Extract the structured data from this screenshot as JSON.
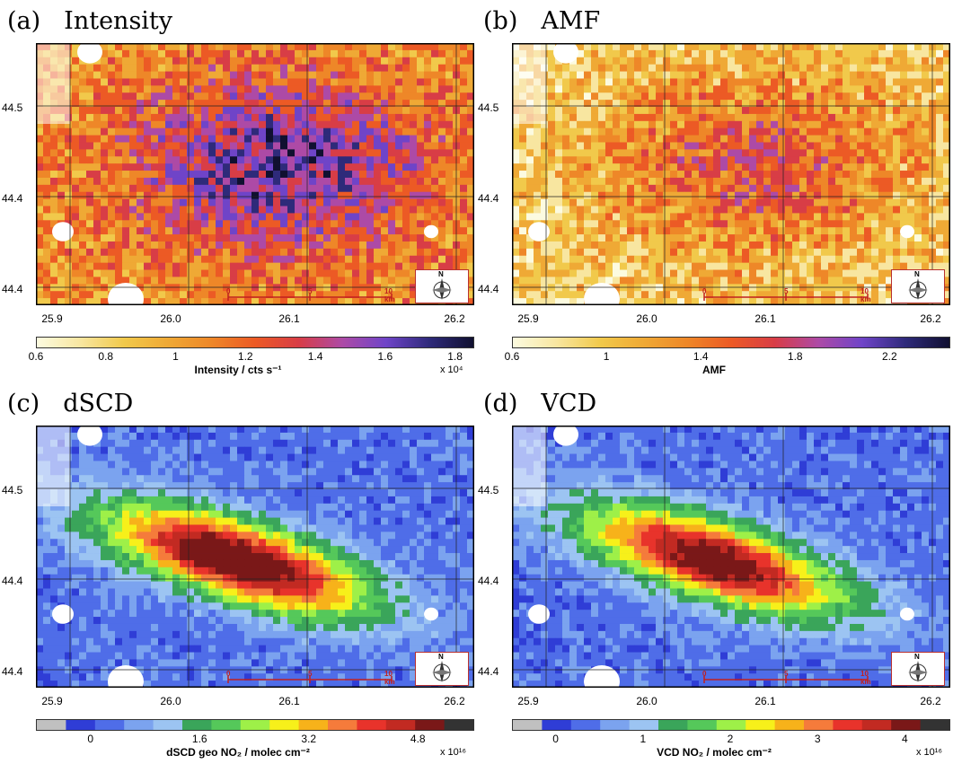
{
  "panels": [
    {
      "letter": "(a)",
      "title": "Intensity",
      "colorbar_label": "Intensity / cts s⁻¹",
      "colorbar_exponent": "x 10⁴",
      "colorbar_ticks": [
        "0.6",
        "0.8",
        "1",
        "1.2",
        "1.4",
        "1.6",
        "1.8"
      ],
      "colormap": [
        "#fcfbe0",
        "#f8e6a0",
        "#f1c94b",
        "#efa935",
        "#ee8728",
        "#ec5a25",
        "#d83d46",
        "#ad4aa6",
        "#6f44c8",
        "#2e2a7a",
        "#101030"
      ]
    },
    {
      "letter": "(b)",
      "title": "AMF",
      "colorbar_label": "AMF",
      "colorbar_exponent": "",
      "colorbar_ticks": [
        "0.6",
        "1",
        "1.4",
        "1.8",
        "2.2"
      ],
      "colormap": [
        "#fcfbe0",
        "#f8e6a0",
        "#f1c94b",
        "#efa935",
        "#ee8728",
        "#ec5a25",
        "#d83d46",
        "#ad4aa6",
        "#6f44c8",
        "#2e2a7a",
        "#101030"
      ]
    },
    {
      "letter": "(c)",
      "title": "dSCD",
      "colorbar_label": "dSCD geo NO₂ / molec cm⁻²",
      "colorbar_exponent": "x 10¹⁶",
      "colorbar_ticks": [
        "0",
        "1.6",
        "3.2",
        "4.8"
      ],
      "colormap": [
        "#c0c0c0",
        "#2f3dd6",
        "#4f6de8",
        "#7ba3ef",
        "#9cc4f2",
        "#3aa55a",
        "#55c85a",
        "#9ef048",
        "#f7f01a",
        "#f7b21a",
        "#f57b3b",
        "#e8332b",
        "#c22a22",
        "#7a1818",
        "#333333"
      ]
    },
    {
      "letter": "(d)",
      "title": "VCD",
      "colorbar_label": "VCD NO₂ / molec cm⁻²",
      "colorbar_exponent": "x 10¹⁶",
      "colorbar_ticks": [
        "0",
        "1",
        "2",
        "3",
        "4"
      ],
      "colormap": [
        "#c0c0c0",
        "#2f3dd6",
        "#4f6de8",
        "#7ba3ef",
        "#9cc4f2",
        "#3aa55a",
        "#55c85a",
        "#9ef048",
        "#f7f01a",
        "#f7b21a",
        "#f57b3b",
        "#e8332b",
        "#c22a22",
        "#7a1818",
        "#333333"
      ]
    }
  ],
  "axes": {
    "lat_labels": [
      "44.5",
      "44.4",
      "44.4"
    ],
    "lon_labels": [
      "25.9",
      "26.0",
      "26.1",
      "26.2"
    ]
  },
  "scale_bar": {
    "labels": [
      "0",
      "5",
      "10 km"
    ]
  },
  "compass": {
    "north": "N"
  }
}
